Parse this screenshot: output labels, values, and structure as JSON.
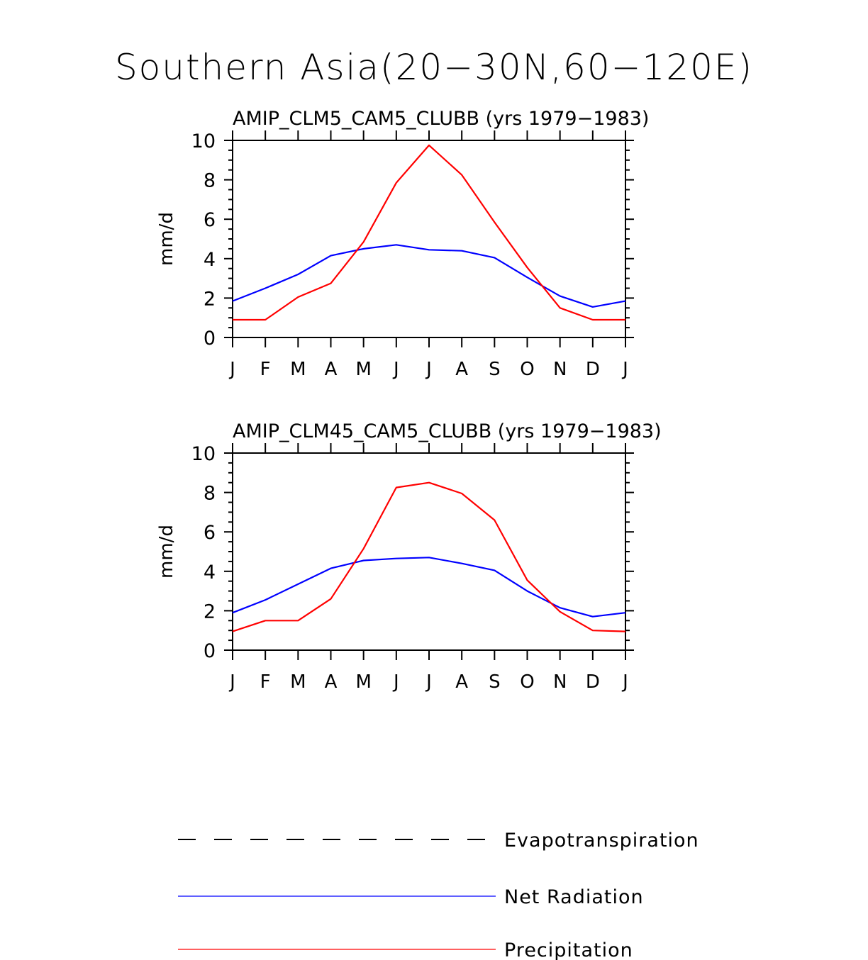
{
  "title": "Southern Asia(20−30N,60−120E)",
  "colors": {
    "net_radiation": "#0000ff",
    "precipitation": "#ff0000",
    "evapotranspiration": "#000000",
    "axis": "#000000"
  },
  "legend": [
    {
      "name": "Evapotranspiration",
      "style": "dashed",
      "color": "#000000"
    },
    {
      "name": "Net Radiation",
      "style": "solid",
      "color": "#0000ff"
    },
    {
      "name": "Precipitation",
      "style": "solid",
      "color": "#ff0000"
    }
  ],
  "chart_data": [
    {
      "type": "line",
      "title": "AMIP_CLM5_CAM5_CLUBB (yrs 1979−1983)",
      "xlabel": "",
      "ylabel": "mm/d",
      "ylim": [
        0,
        10
      ],
      "yticks": [
        "0",
        "2",
        "4",
        "6",
        "8",
        "10"
      ],
      "categories": [
        "J",
        "F",
        "M",
        "A",
        "M",
        "J",
        "J",
        "A",
        "S",
        "O",
        "N",
        "D",
        "J"
      ],
      "series": [
        {
          "name": "Net Radiation",
          "color": "#0000ff",
          "values": [
            1.85,
            2.5,
            3.2,
            4.15,
            4.5,
            4.7,
            4.45,
            4.4,
            4.05,
            3.05,
            2.1,
            1.55,
            1.85
          ]
        },
        {
          "name": "Precipitation",
          "color": "#ff0000",
          "values": [
            0.9,
            0.9,
            2.05,
            2.75,
            4.85,
            7.85,
            9.75,
            8.25,
            5.85,
            3.55,
            1.5,
            0.9,
            0.9
          ]
        }
      ]
    },
    {
      "type": "line",
      "title": "AMIP_CLM45_CAM5_CLUBB (yrs 1979−1983)",
      "xlabel": "",
      "ylabel": "mm/d",
      "ylim": [
        0,
        10
      ],
      "yticks": [
        "0",
        "2",
        "4",
        "6",
        "8",
        "10"
      ],
      "categories": [
        "J",
        "F",
        "M",
        "A",
        "M",
        "J",
        "J",
        "A",
        "S",
        "O",
        "N",
        "D",
        "J"
      ],
      "series": [
        {
          "name": "Net Radiation",
          "color": "#0000ff",
          "values": [
            1.9,
            2.55,
            3.35,
            4.15,
            4.55,
            4.65,
            4.7,
            4.4,
            4.05,
            3.0,
            2.15,
            1.7,
            1.9
          ]
        },
        {
          "name": "Precipitation",
          "color": "#ff0000",
          "values": [
            0.95,
            1.5,
            1.5,
            2.6,
            5.15,
            8.25,
            8.5,
            7.95,
            6.6,
            3.55,
            1.95,
            1.0,
            0.95
          ]
        }
      ]
    }
  ]
}
